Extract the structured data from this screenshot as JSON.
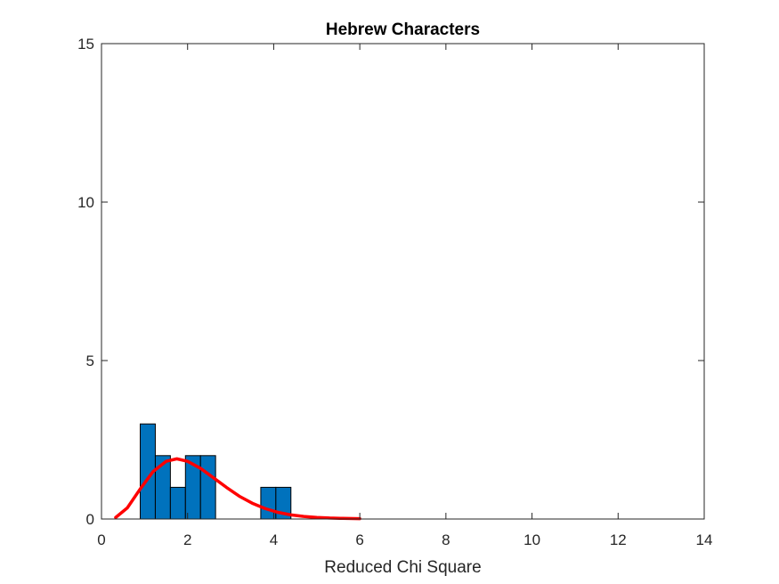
{
  "chart_data": {
    "type": "bar",
    "title": "Hebrew Characters",
    "xlabel": "Reduced Chi Square",
    "ylabel": "",
    "xlim": [
      0,
      14
    ],
    "ylim": [
      0,
      15
    ],
    "xticks": [
      "0",
      "2",
      "4",
      "6",
      "8",
      "10",
      "12",
      "14"
    ],
    "yticks": [
      "0",
      "5",
      "10",
      "15"
    ],
    "grid": false,
    "bar_color": "#0072BD",
    "bar_edge_color": "#000000",
    "histogram": {
      "bin_width": 0.35,
      "bins": [
        {
          "x0": 0.9,
          "count": 3
        },
        {
          "x0": 1.25,
          "count": 2
        },
        {
          "x0": 1.6,
          "count": 1
        },
        {
          "x0": 1.95,
          "count": 2
        },
        {
          "x0": 2.3,
          "count": 2
        },
        {
          "x0": 3.7,
          "count": 1
        },
        {
          "x0": 4.05,
          "count": 1
        }
      ]
    },
    "fit_curve": {
      "color": "#FF0000",
      "x": [
        0.33,
        0.6,
        0.9,
        1.2,
        1.5,
        1.75,
        2.0,
        2.3,
        2.6,
        2.9,
        3.2,
        3.5,
        3.8,
        4.1,
        4.4,
        4.7,
        5.0,
        5.3,
        5.6,
        6.0
      ],
      "y": [
        0.05,
        0.35,
        0.95,
        1.5,
        1.82,
        1.9,
        1.82,
        1.6,
        1.3,
        1.0,
        0.72,
        0.5,
        0.33,
        0.21,
        0.13,
        0.08,
        0.05,
        0.03,
        0.02,
        0.01
      ]
    }
  }
}
